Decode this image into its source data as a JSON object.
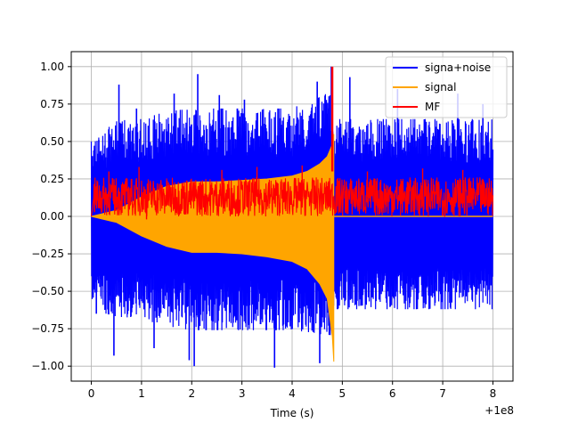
{
  "chart_data": {
    "type": "line",
    "title": "",
    "xlabel": "Time (s)",
    "ylabel": "",
    "x_offset_label": "+1e8",
    "xlim": [
      -0.4,
      8.4
    ],
    "ylim": [
      -1.1,
      1.1
    ],
    "xticks": [
      0,
      1,
      2,
      3,
      4,
      5,
      6,
      7,
      8
    ],
    "xtick_labels": [
      "0",
      "1",
      "2",
      "3",
      "4",
      "5",
      "6",
      "7",
      "8"
    ],
    "yticks": [
      -1.0,
      -0.75,
      -0.5,
      -0.25,
      0.0,
      0.25,
      0.5,
      0.75,
      1.0
    ],
    "ytick_labels": [
      "−1.00",
      "−0.75",
      "−0.50",
      "−0.25",
      "0.00",
      "0.25",
      "0.50",
      "0.75",
      "1.00"
    ],
    "grid": true,
    "legend_position": "upper right",
    "series": [
      {
        "name": "signa+noise",
        "color": "#0000ff",
        "envelope": {
          "x": [
            0,
            0.5,
            1.0,
            1.5,
            2.0,
            2.5,
            3.0,
            3.5,
            4.0,
            4.5,
            4.7,
            4.8,
            4.83,
            4.86,
            5.0,
            6.0,
            7.0,
            8.0
          ],
          "upper": [
            0.5,
            0.65,
            0.65,
            0.7,
            0.72,
            0.72,
            0.72,
            0.72,
            0.72,
            0.8,
            0.85,
            0.8,
            0.65,
            0.65,
            0.65,
            0.65,
            0.65,
            0.65
          ],
          "lower": [
            -0.62,
            -0.67,
            -0.68,
            -0.74,
            -0.76,
            -0.76,
            -0.76,
            -0.76,
            -0.76,
            -0.78,
            -0.82,
            -0.85,
            -0.62,
            -0.62,
            -0.62,
            -0.62,
            -0.62,
            -0.62
          ]
        },
        "spikes": [
          {
            "x": 0.05,
            "y": 0.44
          },
          {
            "x": 0.1,
            "y": -0.65
          },
          {
            "x": 0.15,
            "y": 0.51
          },
          {
            "x": 0.55,
            "y": 0.88
          },
          {
            "x": 0.9,
            "y": 0.72
          },
          {
            "x": 1.25,
            "y": -0.88
          },
          {
            "x": 1.65,
            "y": 0.82
          },
          {
            "x": 2.05,
            "y": -1.0
          },
          {
            "x": 2.12,
            "y": 0.95
          },
          {
            "x": 2.55,
            "y": 0.81
          },
          {
            "x": 3.05,
            "y": 0.78
          },
          {
            "x": 3.65,
            "y": -1.01
          },
          {
            "x": 4.5,
            "y": 0.9
          },
          {
            "x": 4.55,
            "y": -0.98
          },
          {
            "x": 4.78,
            "y": 1.0
          },
          {
            "x": 5.15,
            "y": 0.93
          },
          {
            "x": 6.1,
            "y": 0.85
          },
          {
            "x": 7.3,
            "y": 0.82
          },
          {
            "x": 4.4,
            "y": 0.45
          },
          {
            "x": 0.45,
            "y": -0.93
          },
          {
            "x": 1.95,
            "y": -0.96
          },
          {
            "x": 7.8,
            "y": 0.75
          }
        ],
        "baseline_segment": {
          "x": [
            4.86,
            8.0
          ],
          "y": -0.02
        }
      },
      {
        "name": "signal",
        "color": "#ffa500",
        "envelope": {
          "x": [
            0,
            0.5,
            1.0,
            1.5,
            2.0,
            2.5,
            3.0,
            3.5,
            4.0,
            4.3,
            4.55,
            4.7,
            4.8,
            4.83
          ],
          "upper": [
            0.0,
            0.04,
            0.13,
            0.2,
            0.23,
            0.23,
            0.24,
            0.25,
            0.27,
            0.3,
            0.35,
            0.4,
            0.48,
            0.55
          ],
          "lower": [
            0.0,
            -0.04,
            -0.13,
            -0.2,
            -0.24,
            -0.24,
            -0.25,
            -0.27,
            -0.3,
            -0.35,
            -0.45,
            -0.55,
            -0.8,
            -0.97
          ]
        },
        "end_x": 4.83
      },
      {
        "name": "MF",
        "color": "#ff0000",
        "band": {
          "center": 0.13,
          "half_width": 0.13
        },
        "spikes": [
          {
            "x": 0.35,
            "y": 0.3
          },
          {
            "x": 0.95,
            "y": 0.33
          },
          {
            "x": 1.1,
            "y": -0.02
          },
          {
            "x": 2.6,
            "y": 0.31
          },
          {
            "x": 3.3,
            "y": 0.33
          },
          {
            "x": 4.2,
            "y": 0.34
          },
          {
            "x": 5.5,
            "y": 0.3
          },
          {
            "x": 6.6,
            "y": 0.32
          },
          {
            "x": 7.4,
            "y": 0.31
          }
        ],
        "peak": {
          "x": 4.8,
          "y": 1.0
        }
      }
    ]
  }
}
